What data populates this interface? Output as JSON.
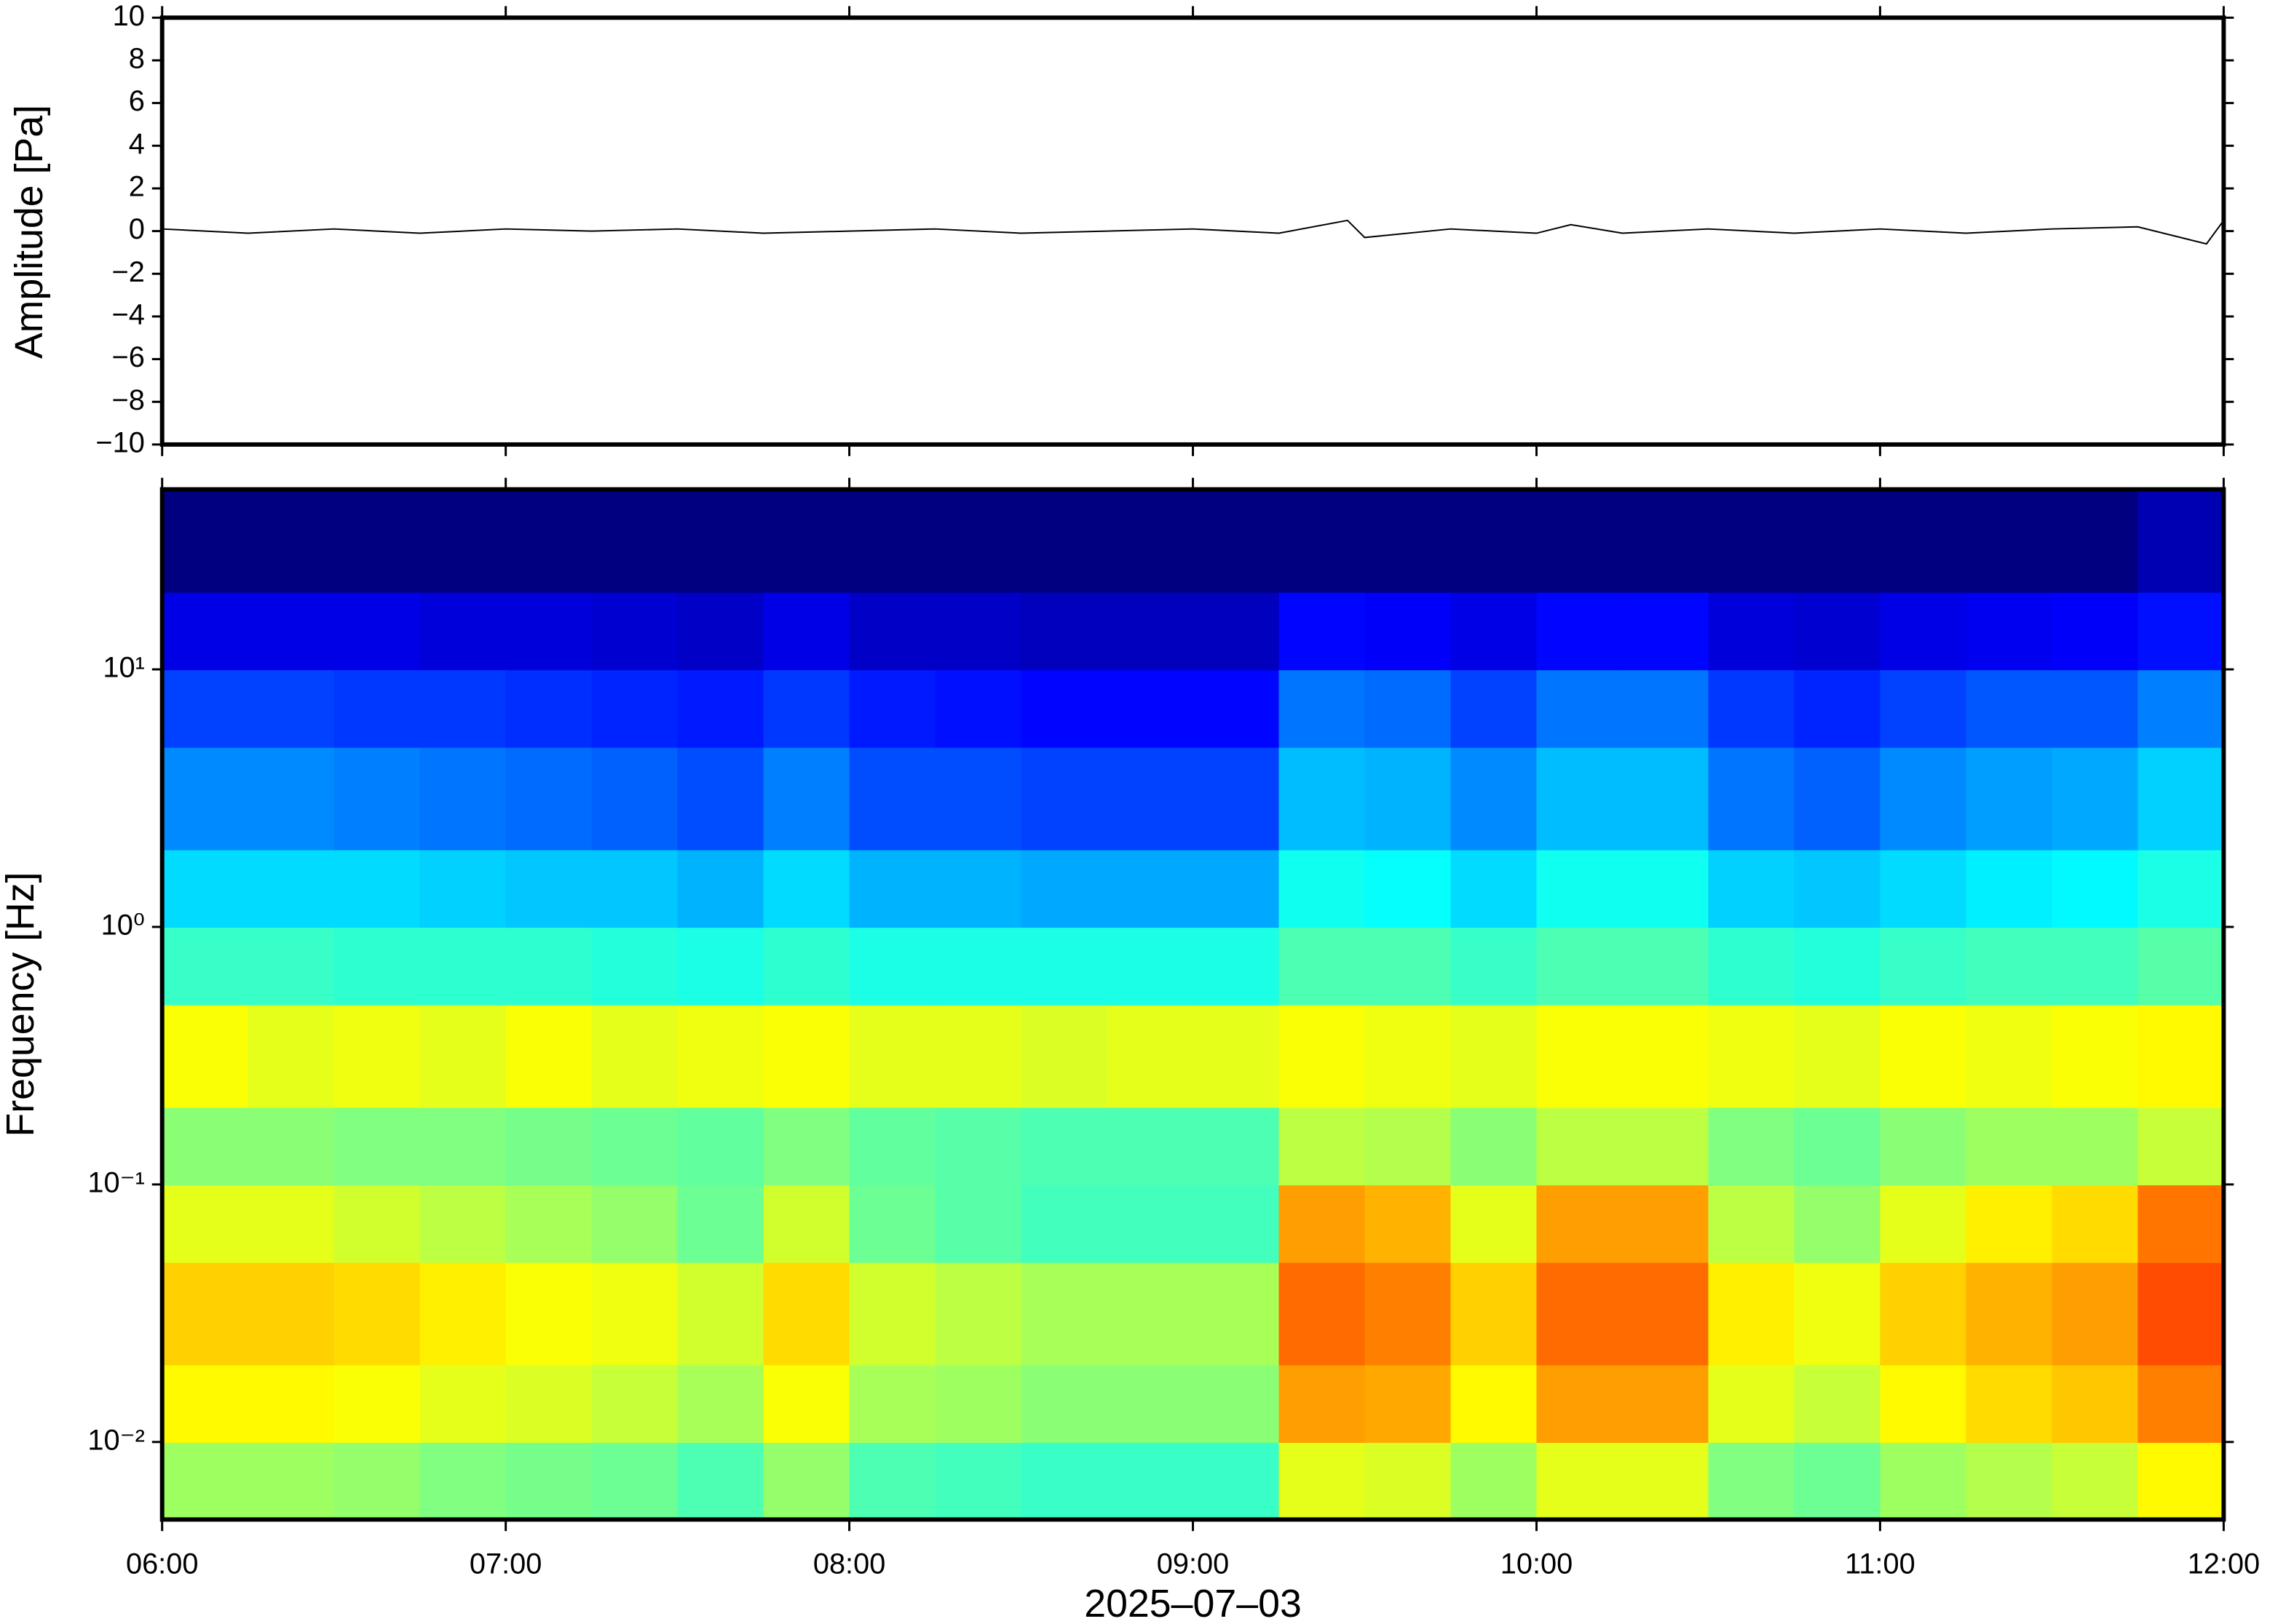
{
  "chart_data": [
    {
      "type": "line",
      "ylabel": "Amplitude [Pa]",
      "xlim": [
        6,
        12
      ],
      "xticks": [
        6,
        7,
        8,
        9,
        10,
        11,
        12
      ],
      "ylim": [
        -10,
        10
      ],
      "yticks": [
        {
          "value": -10,
          "label": "−10"
        },
        {
          "value": -8,
          "label": "−8"
        },
        {
          "value": -6,
          "label": "−6"
        },
        {
          "value": -4,
          "label": "−4"
        },
        {
          "value": -2,
          "label": "−2"
        },
        0,
        2,
        4,
        6,
        8,
        10
      ],
      "x": [
        6,
        6.25,
        6.5,
        6.75,
        7,
        7.25,
        7.5,
        7.75,
        8,
        8.25,
        8.5,
        8.75,
        9,
        9.25,
        9.45,
        9.5,
        9.75,
        10,
        10.1,
        10.25,
        10.5,
        10.75,
        11,
        11.25,
        11.5,
        11.75,
        11.95,
        12
      ],
      "series": [
        {
          "color": "#000000",
          "values": [
            0.1,
            -0.1,
            0.1,
            -0.1,
            0.1,
            0,
            0.1,
            -0.1,
            0,
            0.1,
            -0.1,
            0,
            0.1,
            -0.1,
            0.5,
            -0.3,
            0.1,
            -0.1,
            0.3,
            -0.1,
            0.1,
            -0.1,
            0.1,
            -0.1,
            0.1,
            0.2,
            -0.6,
            0.5
          ]
        }
      ]
    },
    {
      "type": "heatmap",
      "ylabel": "Frequency [Hz]",
      "xlabel": "2025–07–03",
      "xlim": [
        6,
        12
      ],
      "xticks": [
        {
          "value": 6,
          "label": "06:00"
        },
        {
          "value": 7,
          "label": "07:00"
        },
        {
          "value": 8,
          "label": "08:00"
        },
        {
          "value": 9,
          "label": "09:00"
        },
        {
          "value": 10,
          "label": "10:00"
        },
        {
          "value": 11,
          "label": "11:00"
        },
        {
          "value": 12,
          "label": "12:00"
        }
      ],
      "ylim": [
        0.005,
        50
      ],
      "ylog": true,
      "yticks": [
        {
          "value": 0.01,
          "label": "10⁻²"
        },
        {
          "value": 0.1,
          "label": "10⁻¹"
        },
        {
          "value": 1,
          "label": "10⁰"
        },
        {
          "value": 10,
          "label": "10¹"
        }
      ],
      "colormap": "jet",
      "zlim": [
        0,
        1
      ],
      "xbins": [
        6,
        6.25,
        6.5,
        6.75,
        7,
        7.25,
        7.5,
        7.75,
        8,
        8.25,
        8.5,
        8.75,
        9,
        9.25,
        9.5,
        9.75,
        10,
        10.25,
        10.5,
        10.75,
        11,
        11.25,
        11.5,
        11.75,
        12
      ],
      "ybins": [
        0.005,
        0.01,
        0.02,
        0.05,
        0.1,
        0.2,
        0.5,
        1,
        2,
        5,
        10,
        20,
        50
      ],
      "z": [
        [
          0.53,
          0.53,
          0.52,
          0.5,
          0.49,
          0.48,
          0.45,
          0.52,
          0.45,
          0.44,
          0.43,
          0.43,
          0.43,
          0.6,
          0.59,
          0.53,
          0.6,
          0.6,
          0.5,
          0.48,
          0.53,
          0.55,
          0.57,
          0.63
        ],
        [
          0.63,
          0.63,
          0.62,
          0.6,
          0.59,
          0.57,
          0.54,
          0.62,
          0.54,
          0.53,
          0.51,
          0.51,
          0.51,
          0.72,
          0.71,
          0.63,
          0.72,
          0.72,
          0.6,
          0.57,
          0.63,
          0.66,
          0.68,
          0.75
        ],
        [
          0.67,
          0.67,
          0.66,
          0.64,
          0.62,
          0.61,
          0.58,
          0.66,
          0.58,
          0.56,
          0.54,
          0.54,
          0.54,
          0.77,
          0.75,
          0.67,
          0.77,
          0.77,
          0.64,
          0.61,
          0.67,
          0.7,
          0.72,
          0.8
        ],
        [
          0.6,
          0.6,
          0.58,
          0.56,
          0.54,
          0.52,
          0.48,
          0.58,
          0.48,
          0.46,
          0.44,
          0.44,
          0.44,
          0.72,
          0.7,
          0.6,
          0.72,
          0.72,
          0.56,
          0.52,
          0.6,
          0.64,
          0.66,
          0.76
        ],
        [
          0.51,
          0.51,
          0.5,
          0.5,
          0.49,
          0.48,
          0.47,
          0.5,
          0.47,
          0.46,
          0.45,
          0.45,
          0.45,
          0.56,
          0.55,
          0.51,
          0.56,
          0.56,
          0.5,
          0.48,
          0.51,
          0.53,
          0.53,
          0.57
        ],
        [
          0.62,
          0.6,
          0.61,
          0.6,
          0.62,
          0.6,
          0.61,
          0.62,
          0.6,
          0.6,
          0.59,
          0.6,
          0.6,
          0.62,
          0.61,
          0.6,
          0.62,
          0.62,
          0.61,
          0.6,
          0.62,
          0.61,
          0.62,
          0.63
        ],
        [
          0.43,
          0.43,
          0.42,
          0.42,
          0.42,
          0.41,
          0.4,
          0.42,
          0.4,
          0.4,
          0.4,
          0.4,
          0.4,
          0.45,
          0.45,
          0.43,
          0.45,
          0.45,
          0.42,
          0.41,
          0.43,
          0.44,
          0.44,
          0.46
        ],
        [
          0.34,
          0.34,
          0.34,
          0.33,
          0.32,
          0.32,
          0.3,
          0.34,
          0.3,
          0.3,
          0.29,
          0.29,
          0.29,
          0.39,
          0.38,
          0.34,
          0.39,
          0.39,
          0.33,
          0.32,
          0.34,
          0.36,
          0.37,
          0.4
        ],
        [
          0.26,
          0.26,
          0.25,
          0.24,
          0.23,
          0.22,
          0.2,
          0.25,
          0.2,
          0.2,
          0.19,
          0.19,
          0.19,
          0.31,
          0.3,
          0.26,
          0.31,
          0.31,
          0.24,
          0.22,
          0.26,
          0.28,
          0.29,
          0.33
        ],
        [
          0.19,
          0.19,
          0.18,
          0.18,
          0.17,
          0.16,
          0.15,
          0.18,
          0.15,
          0.14,
          0.13,
          0.13,
          0.13,
          0.24,
          0.23,
          0.19,
          0.24,
          0.24,
          0.18,
          0.16,
          0.19,
          0.21,
          0.21,
          0.25
        ],
        [
          0.1,
          0.1,
          0.1,
          0.09,
          0.09,
          0.08,
          0.07,
          0.1,
          0.07,
          0.07,
          0.06,
          0.06,
          0.06,
          0.13,
          0.12,
          0.1,
          0.13,
          0.13,
          0.09,
          0.08,
          0.1,
          0.11,
          0.12,
          0.14
        ],
        [
          0,
          0,
          0,
          0,
          0,
          0,
          0,
          0,
          0,
          0,
          0,
          0,
          0,
          0,
          0,
          0,
          0,
          0,
          0,
          0,
          0,
          0,
          0,
          0.05
        ]
      ]
    }
  ]
}
